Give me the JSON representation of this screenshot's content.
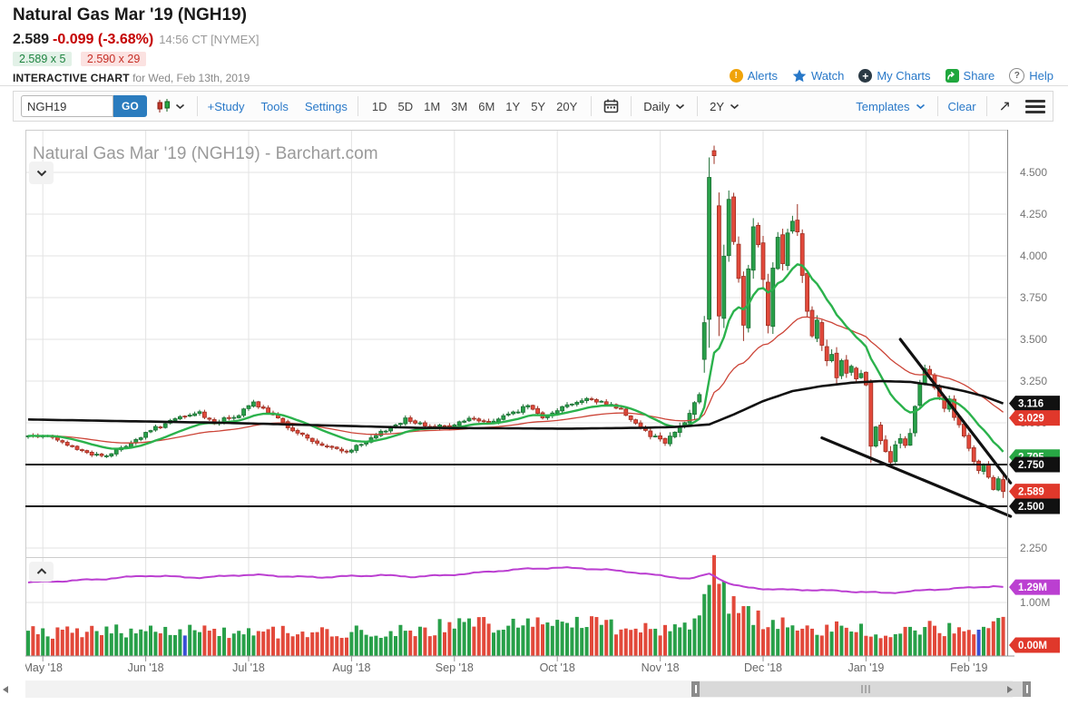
{
  "header": {
    "title": "Natural Gas Mar '19 (NGH19)",
    "last_price": "2.589",
    "change": "-0.099 (-3.68%)",
    "quote_time": "14:56 CT [NYMEX]",
    "bid": "2.589 x 5",
    "ask": "2.590 x 29",
    "chart_label": "INTERACTIVE CHART",
    "chart_date": "for Wed, Feb 13th, 2019",
    "links": {
      "alerts": "Alerts",
      "watch": "Watch",
      "my_charts": "My Charts",
      "share": "Share",
      "help": "Help"
    }
  },
  "toolbar": {
    "symbol_value": "NGH19",
    "go_label": "GO",
    "study_label": "+Study",
    "tools_label": "Tools",
    "settings_label": "Settings",
    "ranges": [
      "1D",
      "5D",
      "1M",
      "3M",
      "6M",
      "1Y",
      "5Y",
      "20Y"
    ],
    "frequency_label": "Daily",
    "range_label": "2Y",
    "templates_label": "Templates",
    "clear_label": "Clear"
  },
  "chart_data": {
    "type": "candlestick",
    "title": "Natural Gas Mar '19 (NGH19) - Barchart.com",
    "symbol": "NGH19",
    "frequency": "Daily",
    "range": "2Y",
    "last_close": 2.589,
    "price_axis": {
      "min": 2.19,
      "max": 4.75,
      "ticks": [
        [
          "4.500",
          4.5
        ],
        [
          "4.250",
          4.25
        ],
        [
          "4.000",
          4.0
        ],
        [
          "3.750",
          3.75
        ],
        [
          "3.500",
          3.5
        ],
        [
          "3.250",
          3.25
        ],
        [
          "3.000",
          3.0
        ],
        [
          "2.750",
          2.75
        ],
        [
          "2.500",
          2.5
        ],
        [
          "2.250",
          2.25
        ]
      ]
    },
    "volume_axis": {
      "ticks": [
        [
          "1.00M",
          1.0
        ]
      ]
    },
    "months": [
      {
        "label": "May '18",
        "d": 3
      },
      {
        "label": "Jun '18",
        "d": 24
      },
      {
        "label": "Jul '18",
        "d": 45
      },
      {
        "label": "Aug '18",
        "d": 66
      },
      {
        "label": "Sep '18",
        "d": 87
      },
      {
        "label": "Oct '18",
        "d": 108
      },
      {
        "label": "Nov '18",
        "d": 129
      },
      {
        "label": "Dec '18",
        "d": 150
      },
      {
        "label": "Jan '19",
        "d": 171
      },
      {
        "label": "Feb '19",
        "d": 192
      }
    ],
    "days_total": 200,
    "close_keypoints": [
      [
        0,
        2.92
      ],
      [
        3,
        2.93
      ],
      [
        7,
        2.88
      ],
      [
        12,
        2.82
      ],
      [
        16,
        2.8
      ],
      [
        21,
        2.88
      ],
      [
        26,
        2.97
      ],
      [
        31,
        3.03
      ],
      [
        35,
        3.06
      ],
      [
        38,
        3.0
      ],
      [
        43,
        3.05
      ],
      [
        46,
        3.12
      ],
      [
        50,
        3.04
      ],
      [
        55,
        2.94
      ],
      [
        60,
        2.86
      ],
      [
        65,
        2.83
      ],
      [
        69,
        2.88
      ],
      [
        73,
        2.96
      ],
      [
        77,
        3.02
      ],
      [
        81,
        2.99
      ],
      [
        86,
        2.97
      ],
      [
        90,
        3.03
      ],
      [
        94,
        3.0
      ],
      [
        98,
        3.05
      ],
      [
        102,
        3.1
      ],
      [
        105,
        3.04
      ],
      [
        108,
        3.08
      ],
      [
        111,
        3.12
      ],
      [
        114,
        3.14
      ],
      [
        118,
        3.12
      ],
      [
        121,
        3.08
      ],
      [
        124,
        3.0
      ],
      [
        127,
        2.93
      ],
      [
        130,
        2.89
      ],
      [
        133,
        2.98
      ],
      [
        135,
        3.05
      ],
      [
        137,
        3.18
      ],
      [
        138,
        3.6
      ],
      [
        139,
        4.47
      ],
      [
        140,
        4.6
      ],
      [
        141,
        3.64
      ],
      [
        142,
        3.94
      ],
      [
        143,
        4.3
      ],
      [
        144,
        4.1
      ],
      [
        145,
        3.85
      ],
      [
        146,
        3.62
      ],
      [
        147,
        3.9
      ],
      [
        148,
        4.2
      ],
      [
        149,
        4.05
      ],
      [
        150,
        3.86
      ],
      [
        151,
        3.6
      ],
      [
        152,
        3.95
      ],
      [
        153,
        4.15
      ],
      [
        154,
        3.98
      ],
      [
        155,
        4.1
      ],
      [
        156,
        4.25
      ],
      [
        157,
        4.12
      ],
      [
        158,
        3.92
      ],
      [
        159,
        3.7
      ],
      [
        160,
        3.52
      ],
      [
        161,
        3.64
      ],
      [
        162,
        3.48
      ],
      [
        163,
        3.35
      ],
      [
        164,
        3.42
      ],
      [
        165,
        3.28
      ],
      [
        166,
        3.4
      ],
      [
        167,
        3.3
      ],
      [
        168,
        3.36
      ],
      [
        169,
        3.28
      ],
      [
        170,
        3.32
      ],
      [
        171,
        3.2
      ],
      [
        172,
        2.86
      ],
      [
        173,
        2.95
      ],
      [
        174,
        2.88
      ],
      [
        175,
        2.82
      ],
      [
        176,
        2.78
      ],
      [
        177,
        2.85
      ],
      [
        178,
        2.9
      ],
      [
        179,
        2.87
      ],
      [
        180,
        2.94
      ],
      [
        181,
        3.08
      ],
      [
        182,
        3.22
      ],
      [
        183,
        3.33
      ],
      [
        184,
        3.28
      ],
      [
        185,
        3.22
      ],
      [
        186,
        3.15
      ],
      [
        187,
        3.1
      ],
      [
        188,
        3.16
      ],
      [
        189,
        3.05
      ],
      [
        190,
        2.98
      ],
      [
        191,
        2.92
      ],
      [
        192,
        2.84
      ],
      [
        193,
        2.76
      ],
      [
        194,
        2.7
      ],
      [
        195,
        2.74
      ],
      [
        196,
        2.66
      ],
      [
        197,
        2.6
      ],
      [
        198,
        2.66
      ],
      [
        199,
        2.589
      ]
    ],
    "volatility_keypoints": [
      [
        0,
        0.012
      ],
      [
        125,
        0.014
      ],
      [
        135,
        0.03
      ],
      [
        138,
        0.06
      ],
      [
        142,
        0.08
      ],
      [
        150,
        0.06
      ],
      [
        158,
        0.055
      ],
      [
        165,
        0.045
      ],
      [
        172,
        0.04
      ],
      [
        180,
        0.03
      ],
      [
        190,
        0.022
      ],
      [
        199,
        0.018
      ]
    ],
    "candle_overrides": {
      "138": {
        "o": 3.38,
        "h": 3.64,
        "l": 3.3,
        "c": 3.6
      },
      "139": {
        "o": 3.62,
        "h": 4.59,
        "l": 3.45,
        "c": 4.47
      },
      "140": {
        "o": 4.63,
        "h": 4.66,
        "l": 4.55,
        "c": 4.6
      },
      "141": {
        "o": 4.3,
        "h": 4.38,
        "l": 3.52,
        "c": 3.64
      },
      "146": {
        "l": 3.49
      },
      "157": {
        "h": 4.31
      },
      "172": {
        "o": 3.24,
        "h": 3.26,
        "l": 2.76,
        "c": 2.86
      },
      "199": {
        "o": 2.66,
        "h": 2.7,
        "l": 2.55,
        "c": 2.589
      }
    },
    "volume_keypoints": [
      [
        0,
        0.42
      ],
      [
        10,
        0.45
      ],
      [
        20,
        0.48
      ],
      [
        32,
        0.5
      ],
      [
        45,
        0.45
      ],
      [
        60,
        0.42
      ],
      [
        75,
        0.46
      ],
      [
        87,
        0.55
      ],
      [
        95,
        0.6
      ],
      [
        105,
        0.62
      ],
      [
        112,
        0.66
      ],
      [
        120,
        0.56
      ],
      [
        128,
        0.5
      ],
      [
        134,
        0.55
      ],
      [
        137,
        0.75
      ],
      [
        138,
        0.95
      ],
      [
        139,
        1.35
      ],
      [
        140,
        1.58
      ],
      [
        141,
        1.28
      ],
      [
        142,
        1.18
      ],
      [
        143,
        0.95
      ],
      [
        145,
        0.82
      ],
      [
        148,
        0.72
      ],
      [
        152,
        0.62
      ],
      [
        156,
        0.56
      ],
      [
        160,
        0.52
      ],
      [
        165,
        0.5
      ],
      [
        170,
        0.46
      ],
      [
        174,
        0.38
      ],
      [
        178,
        0.42
      ],
      [
        182,
        0.5
      ],
      [
        186,
        0.52
      ],
      [
        190,
        0.48
      ],
      [
        193,
        0.42
      ],
      [
        196,
        0.58
      ],
      [
        198,
        0.64
      ],
      [
        199,
        0.56
      ]
    ],
    "volume_blue_days": [
      32,
      194
    ],
    "open_interest_keypoints": [
      [
        0,
        1.38
      ],
      [
        8,
        1.41
      ],
      [
        16,
        1.45
      ],
      [
        24,
        1.51
      ],
      [
        30,
        1.49
      ],
      [
        36,
        1.47
      ],
      [
        42,
        1.52
      ],
      [
        48,
        1.52
      ],
      [
        54,
        1.49
      ],
      [
        60,
        1.48
      ],
      [
        66,
        1.5
      ],
      [
        72,
        1.52
      ],
      [
        78,
        1.49
      ],
      [
        84,
        1.51
      ],
      [
        90,
        1.55
      ],
      [
        96,
        1.6
      ],
      [
        102,
        1.64
      ],
      [
        108,
        1.66
      ],
      [
        113,
        1.65
      ],
      [
        118,
        1.62
      ],
      [
        123,
        1.58
      ],
      [
        128,
        1.52
      ],
      [
        132,
        1.48
      ],
      [
        135,
        1.45
      ],
      [
        137,
        1.49
      ],
      [
        139,
        1.55
      ],
      [
        141,
        1.46
      ],
      [
        143,
        1.36
      ],
      [
        146,
        1.29
      ],
      [
        150,
        1.26
      ],
      [
        155,
        1.24
      ],
      [
        160,
        1.24
      ],
      [
        165,
        1.22
      ],
      [
        170,
        1.2
      ],
      [
        175,
        1.18
      ],
      [
        180,
        1.21
      ],
      [
        184,
        1.24
      ],
      [
        188,
        1.26
      ],
      [
        192,
        1.28
      ],
      [
        195,
        1.3
      ],
      [
        197,
        1.31
      ],
      [
        199,
        1.29
      ]
    ],
    "series": {
      "ma_fast": {
        "name": "fast moving average",
        "color": "#2bb24c",
        "alpha": 0.12,
        "last_value": 2.795
      },
      "ma_slow": {
        "name": "slow moving average",
        "color": "#cc4437",
        "alpha": 0.045,
        "last_value": 3.029
      },
      "ma_long": {
        "name": "long-term moving average",
        "color": "#111111",
        "last_value": 3.116,
        "keypoints": [
          [
            0,
            3.02
          ],
          [
            40,
            3.0
          ],
          [
            80,
            2.97
          ],
          [
            110,
            2.965
          ],
          [
            125,
            2.97
          ],
          [
            132,
            2.975
          ],
          [
            139,
            2.99
          ],
          [
            144,
            3.05
          ],
          [
            150,
            3.13
          ],
          [
            156,
            3.19
          ],
          [
            162,
            3.22
          ],
          [
            168,
            3.24
          ],
          [
            174,
            3.25
          ],
          [
            180,
            3.245
          ],
          [
            186,
            3.22
          ],
          [
            191,
            3.19
          ],
          [
            195,
            3.16
          ],
          [
            199,
            3.116
          ]
        ]
      },
      "open_interest": {
        "name": "Open Interest",
        "color": "#bb3fd1",
        "last_label": "1.29M"
      }
    },
    "annotations": {
      "trendlines": [
        {
          "from": [
            178,
            3.5
          ],
          "to": [
            200.5,
            2.64
          ]
        },
        {
          "from": [
            162,
            2.91
          ],
          "to": [
            200.5,
            2.44
          ]
        }
      ],
      "hlines": [
        2.75,
        2.5
      ]
    },
    "badges": {
      "price": [
        {
          "label": "3.116",
          "value": 3.116,
          "color": "#111111"
        },
        {
          "label": "3.029",
          "value": 3.029,
          "color": "#e0382b"
        },
        {
          "label": "2.795",
          "value": 2.795,
          "color": "#28a745"
        },
        {
          "label": "2.750",
          "value": 2.75,
          "color": "#111111"
        },
        {
          "label": "2.589",
          "value": 2.589,
          "color": "#e0382b"
        },
        {
          "label": "2.500",
          "value": 2.5,
          "color": "#111111"
        }
      ],
      "volume": [
        {
          "label": "1.29M",
          "value": 1.29,
          "color": "#bb3fd1"
        },
        {
          "label": "0.00M",
          "value": 0.0,
          "color": "#e0382b"
        }
      ]
    },
    "colors": {
      "up": "#28a049",
      "up_stroke": "#1b6e33",
      "down": "#e2493b",
      "down_stroke": "#9c2f22",
      "blue_bar": "#3a4fd6",
      "grid": "#e3e3e3",
      "axis_text": "#757575"
    }
  }
}
